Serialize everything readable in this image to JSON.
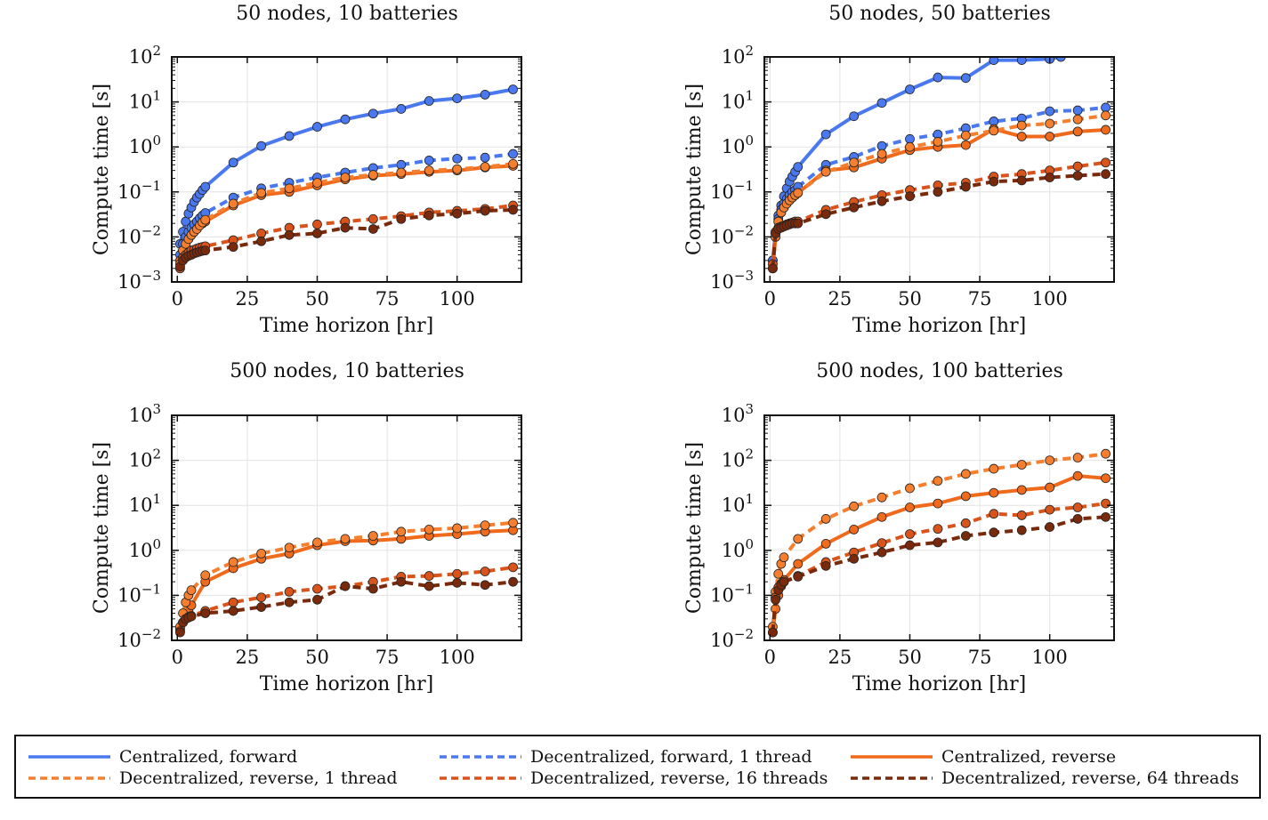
{
  "chart_data": {
    "type": "line",
    "x_common": [
      1,
      2,
      3,
      4,
      5,
      6,
      7,
      8,
      9,
      10,
      20,
      30,
      40,
      50,
      60,
      70,
      80,
      90,
      100,
      110,
      120
    ],
    "series_styles": [
      {
        "name": "Centralized, forward",
        "color": "#4a78ee",
        "dash": "solid"
      },
      {
        "name": "Decentralized, forward, 1 thread",
        "color": "#4a78ee",
        "dash": "dash"
      },
      {
        "name": "Centralized, reverse",
        "color": "#f06a1c",
        "dash": "solid"
      },
      {
        "name": "Decentralized, reverse, 1 thread",
        "color": "#f57f2e",
        "dash": "dash"
      },
      {
        "name": "Decentralized, reverse, 16 threads",
        "color": "#d9541a",
        "dash": "dash"
      },
      {
        "name": "Decentralized, reverse, 64 threads",
        "color": "#7a2a0c",
        "dash": "dash"
      }
    ],
    "legend": [
      "Centralized, forward",
      "Decentralized, forward, 1 thread",
      "Centralized, reverse",
      "Decentralized, reverse, 1 thread",
      "Decentralized, reverse, 16 threads",
      "Decentralized, reverse, 64 threads"
    ],
    "charts": [
      {
        "title": "50 nodes, 10 batteries",
        "xlabel": "Time horizon [hr]",
        "ylabel": "Compute time [s]",
        "xlim": [
          -2,
          123
        ],
        "ylim_exp": [
          -3,
          2
        ],
        "xticks": [
          "0",
          "25",
          "50",
          "75",
          "100"
        ],
        "xtick_values": [
          0,
          25,
          50,
          75,
          100
        ],
        "ytick_exps": [
          -3,
          -2,
          -1,
          0,
          1,
          2
        ],
        "series": [
          {
            "name": "Centralized, forward",
            "values": [
              0.007,
              0.013,
              0.022,
              0.033,
              0.045,
              0.06,
              0.075,
              0.09,
              0.11,
              0.13,
              0.45,
              1.05,
              1.75,
              2.8,
              4.1,
              5.5,
              7.0,
              10.5,
              12.0,
              14.5,
              19.0
            ]
          },
          {
            "name": "Decentralized, forward, 1 thread",
            "values": [
              0.004,
              0.007,
              0.01,
              0.013,
              0.016,
              0.019,
              0.022,
              0.026,
              0.03,
              0.034,
              0.075,
              0.12,
              0.16,
              0.21,
              0.27,
              0.34,
              0.4,
              0.5,
              0.55,
              0.58,
              0.7
            ]
          },
          {
            "name": "Centralized, reverse",
            "values": [
              0.003,
              0.005,
              0.007,
              0.009,
              0.011,
              0.013,
              0.015,
              0.018,
              0.02,
              0.022,
              0.05,
              0.085,
              0.1,
              0.14,
              0.19,
              0.23,
              0.25,
              0.28,
              0.3,
              0.35,
              0.38
            ]
          },
          {
            "name": "Decentralized, reverse, 1 thread",
            "values": [
              0.0025,
              0.005,
              0.007,
              0.009,
              0.011,
              0.013,
              0.015,
              0.018,
              0.021,
              0.024,
              0.055,
              0.095,
              0.12,
              0.16,
              0.21,
              0.24,
              0.27,
              0.3,
              0.32,
              0.36,
              0.42
            ]
          },
          {
            "name": "Decentralized, reverse, 16 threads",
            "values": [
              0.002,
              0.0035,
              0.004,
              0.0045,
              0.005,
              0.0052,
              0.0055,
              0.0058,
              0.006,
              0.0062,
              0.0085,
              0.012,
              0.016,
              0.019,
              0.022,
              0.025,
              0.029,
              0.035,
              0.038,
              0.042,
              0.05
            ]
          },
          {
            "name": "Decentralized, reverse, 64 threads",
            "values": [
              0.0022,
              0.003,
              0.0035,
              0.0038,
              0.004,
              0.0043,
              0.0045,
              0.0047,
              0.0049,
              0.005,
              0.006,
              0.008,
              0.011,
              0.012,
              0.016,
              0.015,
              0.025,
              0.03,
              0.033,
              0.038,
              0.04
            ]
          }
        ]
      },
      {
        "title": "50 nodes, 50 batteries",
        "xlabel": "Time horizon [hr]",
        "ylabel": "Compute time [s]",
        "xlim": [
          -2,
          123
        ],
        "ylim_exp": [
          -3,
          2
        ],
        "xticks": [
          "0",
          "25",
          "50",
          "75",
          "100"
        ],
        "xtick_values": [
          0,
          25,
          50,
          75,
          100
        ],
        "ytick_exps": [
          -3,
          -2,
          -1,
          0,
          1,
          2
        ],
        "series": [
          {
            "name": "Centralized, forward",
            "x": [
              1,
              2,
              3,
              4,
              5,
              6,
              7,
              8,
              9,
              10,
              20,
              30,
              40,
              50,
              60,
              70,
              80,
              90,
              100,
              104
            ],
            "values": [
              0.003,
              0.012,
              0.03,
              0.05,
              0.08,
              0.12,
              0.17,
              0.22,
              0.28,
              0.36,
              1.9,
              4.8,
              9.5,
              19.0,
              35.0,
              34.0,
              85.0,
              85.0,
              90.0,
              100.0
            ]
          },
          {
            "name": "Decentralized, forward, 1 thread",
            "values": [
              0.003,
              0.012,
              0.025,
              0.04,
              0.055,
              0.07,
              0.085,
              0.1,
              0.11,
              0.13,
              0.4,
              0.6,
              1.05,
              1.5,
              1.9,
              2.6,
              3.7,
              4.3,
              6.2,
              6.5,
              7.5
            ]
          },
          {
            "name": "Centralized, reverse",
            "values": [
              0.002,
              0.01,
              0.022,
              0.035,
              0.045,
              0.055,
              0.065,
              0.075,
              0.085,
              0.095,
              0.3,
              0.35,
              0.55,
              0.85,
              1.0,
              1.1,
              2.5,
              1.7,
              1.7,
              2.2,
              2.4
            ]
          },
          {
            "name": "Decentralized, reverse, 1 thread",
            "values": [
              0.002,
              0.01,
              0.022,
              0.035,
              0.045,
              0.055,
              0.065,
              0.075,
              0.085,
              0.095,
              0.28,
              0.45,
              0.7,
              1.0,
              1.3,
              1.8,
              2.3,
              3.0,
              3.3,
              4.1,
              5.0
            ]
          },
          {
            "name": "Decentralized, reverse, 16 threads",
            "values": [
              0.0025,
              0.013,
              0.016,
              0.017,
              0.018,
              0.019,
              0.02,
              0.021,
              0.022,
              0.022,
              0.04,
              0.06,
              0.085,
              0.11,
              0.14,
              0.16,
              0.22,
              0.25,
              0.3,
              0.37,
              0.45
            ]
          },
          {
            "name": "Decentralized, reverse, 64 threads",
            "values": [
              0.002,
              0.012,
              0.015,
              0.016,
              0.017,
              0.018,
              0.019,
              0.02,
              0.02,
              0.02,
              0.032,
              0.045,
              0.062,
              0.08,
              0.1,
              0.13,
              0.17,
              0.18,
              0.21,
              0.23,
              0.25
            ]
          }
        ]
      },
      {
        "title": "500 nodes, 10 batteries",
        "xlabel": "Time horizon [hr]",
        "ylabel": "Compute time [s]",
        "xlim": [
          -2,
          123
        ],
        "ylim_exp": [
          -2,
          3
        ],
        "xticks": [
          "0",
          "25",
          "50",
          "75",
          "100"
        ],
        "xtick_values": [
          0,
          25,
          50,
          75,
          100
        ],
        "ytick_exps": [
          -2,
          -1,
          0,
          1,
          2,
          3
        ],
        "series": [
          {
            "name": "Centralized, reverse",
            "x": [
              1,
              2,
              3,
              4,
              5,
              10,
              20,
              30,
              40,
              50,
              60,
              70,
              80,
              90,
              100,
              110,
              120
            ],
            "values": [
              0.018,
              0.025,
              0.035,
              0.045,
              0.06,
              0.2,
              0.4,
              0.65,
              0.85,
              1.3,
              1.6,
              1.65,
              1.8,
              2.1,
              2.3,
              2.6,
              2.8
            ]
          },
          {
            "name": "Decentralized, reverse, 1 thread",
            "x": [
              1,
              2,
              3,
              4,
              5,
              10,
              20,
              30,
              40,
              50,
              60,
              70,
              80,
              90,
              100,
              110,
              120
            ],
            "values": [
              0.02,
              0.04,
              0.07,
              0.1,
              0.13,
              0.28,
              0.55,
              0.85,
              1.15,
              1.5,
              1.8,
              2.1,
              2.6,
              2.9,
              3.1,
              3.6,
              4.1
            ]
          },
          {
            "name": "Decentralized, reverse, 16 threads",
            "x": [
              1,
              2,
              3,
              4,
              5,
              10,
              20,
              30,
              40,
              50,
              60,
              70,
              80,
              90,
              100,
              110,
              120
            ],
            "values": [
              0.016,
              0.025,
              0.03,
              0.033,
              0.035,
              0.045,
              0.07,
              0.09,
              0.12,
              0.14,
              0.16,
              0.2,
              0.26,
              0.27,
              0.3,
              0.34,
              0.42
            ]
          },
          {
            "name": "Decentralized, reverse, 64 threads",
            "x": [
              1,
              2,
              3,
              4,
              5,
              10,
              20,
              30,
              40,
              50,
              60,
              70,
              80,
              90,
              100,
              110,
              120
            ],
            "values": [
              0.015,
              0.025,
              0.03,
              0.032,
              0.034,
              0.04,
              0.045,
              0.055,
              0.07,
              0.08,
              0.16,
              0.14,
              0.2,
              0.16,
              0.19,
              0.17,
              0.2
            ]
          }
        ]
      },
      {
        "title": "500 nodes, 100 batteries",
        "xlabel": "Time horizon [hr]",
        "ylabel": "Compute time [s]",
        "xlim": [
          -2,
          123
        ],
        "ylim_exp": [
          -2,
          3
        ],
        "xticks": [
          "0",
          "25",
          "50",
          "75",
          "100"
        ],
        "xtick_values": [
          0,
          25,
          50,
          75,
          100
        ],
        "ytick_exps": [
          -2,
          -1,
          0,
          1,
          2,
          3
        ],
        "series": [
          {
            "name": "Centralized, reverse",
            "x": [
              1,
              2,
              3,
              4,
              5,
              10,
              20,
              30,
              40,
              50,
              60,
              70,
              80,
              90,
              100,
              110,
              120
            ],
            "values": [
              0.015,
              0.05,
              0.1,
              0.16,
              0.22,
              0.5,
              1.4,
              2.9,
              5.5,
              9.0,
              11.0,
              16.0,
              19.0,
              22.0,
              25.0,
              45.0,
              40.0
            ]
          },
          {
            "name": "Decentralized, reverse, 1 thread",
            "x": [
              1,
              2,
              3,
              4,
              5,
              10,
              20,
              30,
              40,
              50,
              60,
              70,
              80,
              90,
              100,
              110,
              120
            ],
            "values": [
              0.02,
              0.12,
              0.3,
              0.5,
              0.7,
              1.8,
              5.0,
              9.5,
              15.0,
              24.0,
              35.0,
              50.0,
              65.0,
              80.0,
              100.0,
              115.0,
              140.0
            ]
          },
          {
            "name": "Decentralized, reverse, 16 threads",
            "x": [
              1,
              2,
              3,
              4,
              5,
              10,
              20,
              30,
              40,
              50,
              60,
              70,
              80,
              90,
              100,
              110,
              120
            ],
            "values": [
              0.015,
              0.09,
              0.15,
              0.18,
              0.2,
              0.27,
              0.55,
              0.9,
              1.45,
              2.3,
              3.0,
              4.0,
              6.5,
              6.0,
              8.0,
              9.0,
              11.0
            ]
          },
          {
            "name": "Decentralized, reverse, 64 threads",
            "x": [
              1,
              2,
              3,
              4,
              5,
              10,
              20,
              30,
              40,
              50,
              60,
              70,
              80,
              90,
              100,
              110,
              120
            ],
            "values": [
              0.015,
              0.08,
              0.13,
              0.17,
              0.2,
              0.26,
              0.45,
              0.65,
              0.9,
              1.3,
              1.5,
              2.1,
              2.5,
              2.8,
              3.3,
              5.0,
              5.5
            ]
          }
        ]
      }
    ]
  }
}
